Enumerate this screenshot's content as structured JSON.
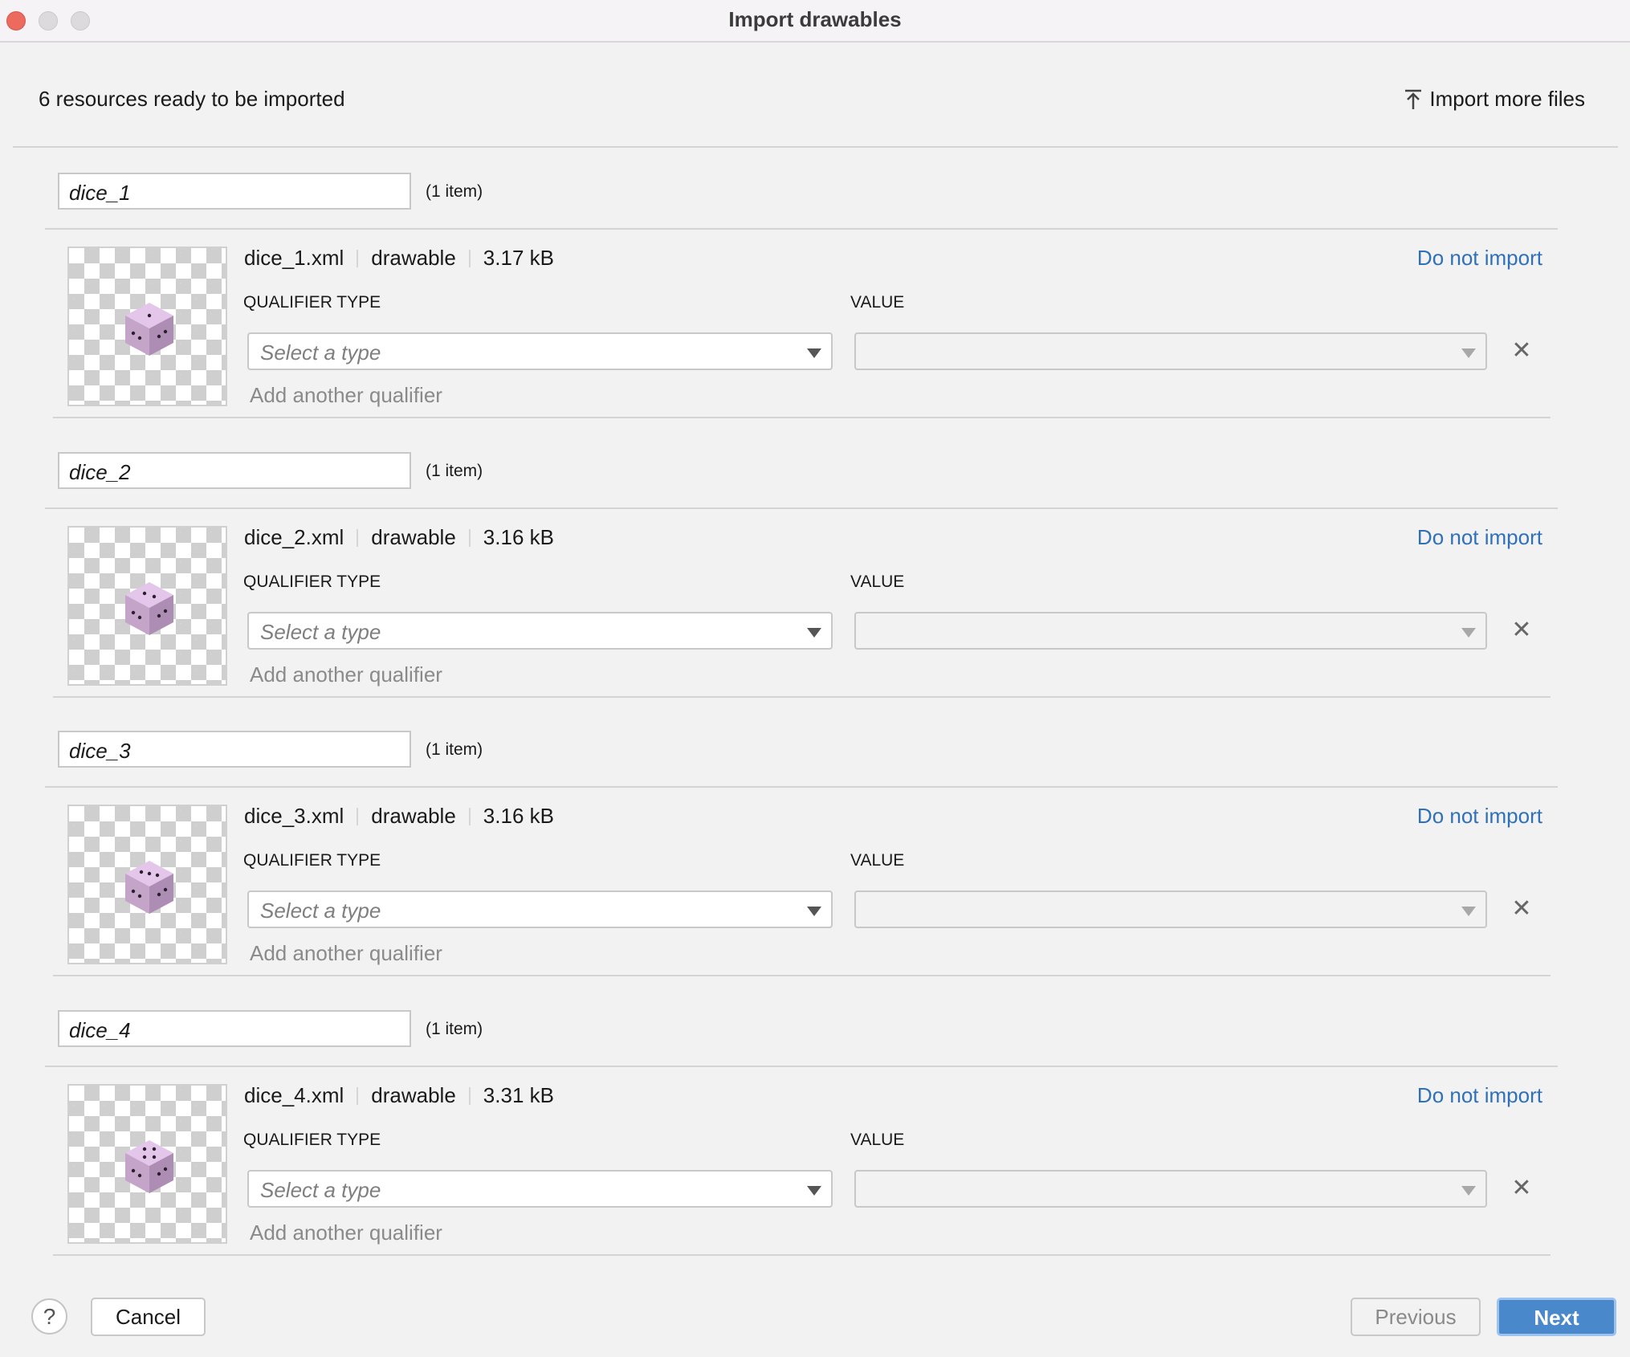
{
  "window": {
    "title": "Import drawables"
  },
  "header": {
    "summary": "6 resources ready to be imported",
    "import_more_label": "Import more files",
    "import_more_icon": "upload-icon"
  },
  "labels": {
    "qualifier_type": "QUALIFIER TYPE",
    "value": "VALUE",
    "select_placeholder": "Select a type",
    "add_qualifier": "Add another qualifier",
    "do_not_import": "Do not import"
  },
  "groups": [
    {
      "name": "dice_1",
      "count": "(1 item)",
      "file": "dice_1.xml",
      "type": "drawable",
      "size": "3.17 kB",
      "pips": 1
    },
    {
      "name": "dice_2",
      "count": "(1 item)",
      "file": "dice_2.xml",
      "type": "drawable",
      "size": "3.16 kB",
      "pips": 2
    },
    {
      "name": "dice_3",
      "count": "(1 item)",
      "file": "dice_3.xml",
      "type": "drawable",
      "size": "3.16 kB",
      "pips": 3
    },
    {
      "name": "dice_4",
      "count": "(1 item)",
      "file": "dice_4.xml",
      "type": "drawable",
      "size": "3.31 kB",
      "pips": 4
    }
  ],
  "footer": {
    "help": "?",
    "cancel": "Cancel",
    "previous": "Previous",
    "next": "Next"
  },
  "colors": {
    "link": "#2f70b8",
    "primary": "#4a88cc",
    "close": "#ec6a5e"
  }
}
